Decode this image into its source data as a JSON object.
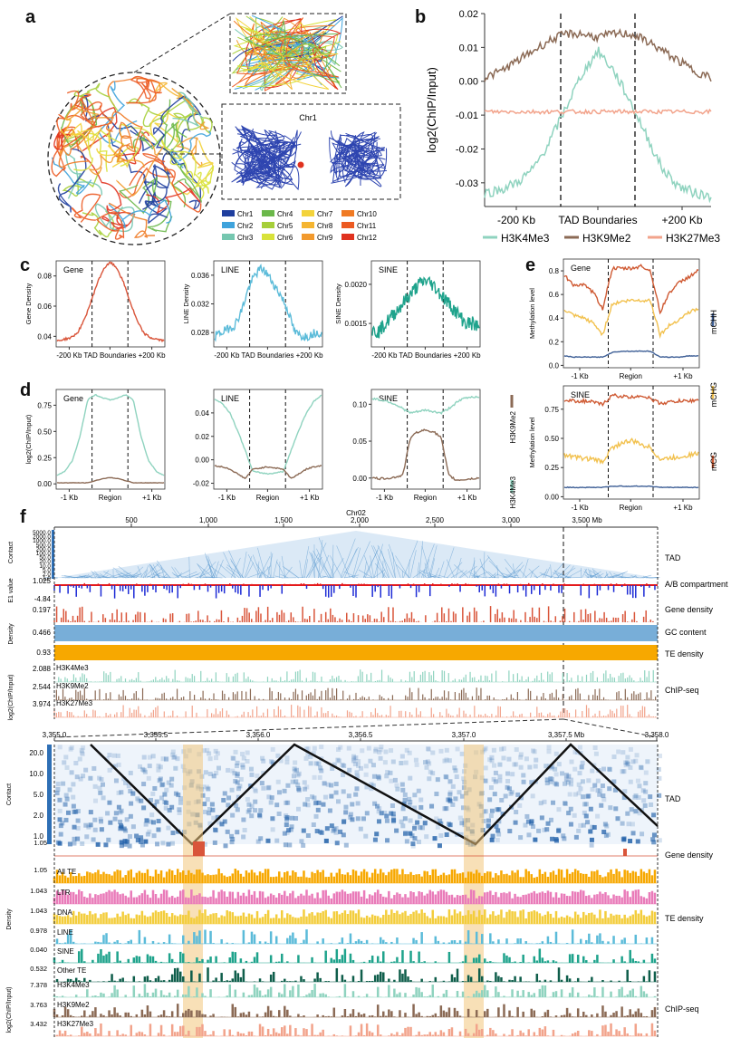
{
  "panels": {
    "a": "a",
    "b": "b",
    "c": "c",
    "d": "d",
    "e": "e",
    "f": "f"
  },
  "colors": {
    "h3k4me3": "#8fd3bf",
    "h3k9me2": "#8b6a55",
    "h3k27me3": "#f2a38b",
    "gene": "#d9553a",
    "line": "#5bbbd9",
    "sine": "#1fa38c",
    "mcg": "#cf5a33",
    "mchg": "#f2c14e",
    "mchh": "#3e5f96",
    "te": "#f7a800",
    "gc": "#78aed8",
    "ltr": "#e97bb9",
    "dna": "#f3cd3c",
    "other_te": "#0f5e4b"
  },
  "panel_a": {
    "inset_title": "Chr1",
    "legend": [
      {
        "name": "Chr1",
        "color": "#1f3e9e"
      },
      {
        "name": "Chr4",
        "color": "#6bb84a"
      },
      {
        "name": "Chr7",
        "color": "#f3d33b"
      },
      {
        "name": "Chr10",
        "color": "#f07a23"
      },
      {
        "name": "Chr2",
        "color": "#3fa3dc"
      },
      {
        "name": "Chr5",
        "color": "#a6cf3a"
      },
      {
        "name": "Chr8",
        "color": "#f5b531"
      },
      {
        "name": "Chr11",
        "color": "#ec5a22"
      },
      {
        "name": "Chr3",
        "color": "#76c7b0"
      },
      {
        "name": "Chr6",
        "color": "#d8e23a"
      },
      {
        "name": "Chr9",
        "color": "#f29a2e"
      },
      {
        "name": "Chr12",
        "color": "#e0321f"
      }
    ]
  },
  "chart_data": [
    {
      "panel": "b",
      "type": "line",
      "ylabel": "log2(ChIP/Input)",
      "yticks": [
        "0.02",
        "0.01",
        "0.00",
        "-0.01",
        "-0.02",
        "-0.03"
      ],
      "ylim": [
        -0.037,
        0.02
      ],
      "xticks": [
        "-200 Kb",
        "TAD Boundaries",
        "+200 Kb"
      ],
      "series": [
        {
          "name": "H3K4Me3",
          "values": [
            -0.033,
            -0.032,
            -0.03,
            -0.026,
            -0.018,
            -0.008,
            0.002,
            0.009,
            0.003,
            -0.006,
            -0.016,
            -0.026,
            -0.031,
            -0.033,
            -0.034
          ]
        },
        {
          "name": "H3K9Me2",
          "values": [
            0.001,
            0.003,
            0.006,
            0.009,
            0.012,
            0.014,
            0.014,
            0.013,
            0.014,
            0.014,
            0.012,
            0.009,
            0.006,
            0.003,
            0.001
          ]
        },
        {
          "name": "H3K27Me3",
          "values": [
            -0.009,
            -0.009,
            -0.009,
            -0.009,
            -0.009,
            -0.009,
            -0.009,
            -0.009,
            -0.009,
            -0.009,
            -0.009,
            -0.009,
            -0.009,
            -0.009,
            -0.009
          ]
        }
      ]
    },
    {
      "panel": "c1",
      "type": "line",
      "title": "Gene",
      "ylabel": "Gene Density",
      "yticks": [
        "0.08",
        "0.06",
        "0.04"
      ],
      "ylim": [
        0.033,
        0.09
      ],
      "xticks": [
        "-200 Kb",
        "TAD Boundaries",
        "+200 Kb"
      ],
      "series": [
        {
          "name": "Gene",
          "values": [
            0.037,
            0.038,
            0.039,
            0.042,
            0.05,
            0.062,
            0.075,
            0.085,
            0.089,
            0.085,
            0.075,
            0.062,
            0.05,
            0.042,
            0.039,
            0.038,
            0.037
          ]
        }
      ]
    },
    {
      "panel": "c2",
      "type": "line",
      "title": "LINE",
      "ylabel": "LINE Density",
      "yticks": [
        "0.036",
        "0.032",
        "0.028"
      ],
      "ylim": [
        0.026,
        0.038
      ],
      "xticks": [
        "-200 Kb",
        "TAD Boundaries",
        "+200 Kb"
      ],
      "series": [
        {
          "name": "LINE",
          "values": [
            0.0275,
            0.028,
            0.0285,
            0.029,
            0.031,
            0.034,
            0.036,
            0.037,
            0.036,
            0.0345,
            0.033,
            0.031,
            0.028,
            0.0275,
            0.0275,
            0.028,
            0.028
          ]
        }
      ]
    },
    {
      "panel": "c3",
      "type": "line",
      "title": "SINE",
      "ylabel": "SINE Density",
      "yticks": [
        "0.0020",
        "0.0015"
      ],
      "ylim": [
        0.0012,
        0.0023
      ],
      "xticks": [
        "-200 Kb",
        "TAD Boundaries",
        "+200 Kb"
      ],
      "series": [
        {
          "name": "SINE",
          "values": [
            0.0014,
            0.0014,
            0.0015,
            0.0016,
            0.0017,
            0.0018,
            0.0019,
            0.002,
            0.00205,
            0.002,
            0.0019,
            0.0018,
            0.0017,
            0.0016,
            0.0015,
            0.0015,
            0.00145
          ]
        }
      ]
    },
    {
      "panel": "d1",
      "type": "line",
      "title": "Gene",
      "ylabel": "log2(ChIP/Input)",
      "yticks": [
        "0.75",
        "0.50",
        "0.25",
        "0.00"
      ],
      "ylim": [
        -0.05,
        0.9
      ],
      "xticks": [
        "-1 Kb",
        "Region",
        "+1 Kb"
      ],
      "series": [
        {
          "name": "H3K4Me3",
          "values": [
            0.08,
            0.12,
            0.22,
            0.45,
            0.8,
            0.85,
            0.82,
            0.8,
            0.82,
            0.85,
            0.8,
            0.45,
            0.22,
            0.12,
            0.08
          ]
        },
        {
          "name": "H3K9Me2",
          "values": [
            0.01,
            0.01,
            0.01,
            0.01,
            0.01,
            0.03,
            0.05,
            0.06,
            0.05,
            0.03,
            0.01,
            0.01,
            0.01,
            0.01,
            0.01
          ]
        }
      ]
    },
    {
      "panel": "d2",
      "type": "line",
      "title": "LINE",
      "yticks": [
        "0.04",
        "0.02",
        "0.00",
        "-0.02"
      ],
      "ylim": [
        -0.025,
        0.06
      ],
      "xticks": [
        "-1 Kb",
        "Region",
        "+1 Kb"
      ],
      "series": [
        {
          "name": "H3K4Me3",
          "values": [
            0.052,
            0.048,
            0.04,
            0.025,
            0.008,
            -0.01,
            -0.011,
            -0.012,
            -0.011,
            -0.01,
            0.008,
            0.025,
            0.04,
            0.05,
            0.055
          ]
        },
        {
          "name": "H3K9Me2",
          "values": [
            -0.005,
            -0.006,
            -0.008,
            -0.012,
            -0.016,
            -0.008,
            -0.007,
            -0.006,
            -0.007,
            -0.008,
            -0.016,
            -0.012,
            -0.008,
            -0.006,
            -0.005
          ]
        }
      ]
    },
    {
      "panel": "d3",
      "type": "line",
      "title": "SINE",
      "yticks": [
        "0.10",
        "0.05",
        "0.00"
      ],
      "ylim": [
        -0.015,
        0.12
      ],
      "xticks": [
        "-1 Kb",
        "Region",
        "+1 Kb"
      ],
      "series": [
        {
          "name": "H3K4Me3",
          "values": [
            0.108,
            0.106,
            0.104,
            0.1,
            0.094,
            0.088,
            0.09,
            0.092,
            0.09,
            0.088,
            0.094,
            0.102,
            0.108,
            0.11,
            0.11
          ]
        },
        {
          "name": "H3K9Me2",
          "values": [
            0.0,
            -0.001,
            0.0,
            0.001,
            0.004,
            0.055,
            0.063,
            0.065,
            0.063,
            0.055,
            0.004,
            -0.003,
            -0.002,
            -0.001,
            0.0
          ]
        }
      ]
    },
    {
      "panel": "e1",
      "type": "line",
      "title": "Gene",
      "ylabel": "Methylation level",
      "yticks": [
        "0.8",
        "0.6",
        "0.4",
        "0.2",
        "0.0"
      ],
      "ylim": [
        -0.02,
        0.9
      ],
      "xticks": [
        "-1 Kb",
        "Region",
        "+1 Kb"
      ],
      "series": [
        {
          "name": "mCG",
          "values": [
            0.76,
            0.68,
            0.68,
            0.62,
            0.48,
            0.82,
            0.82,
            0.82,
            0.84,
            0.8,
            0.45,
            0.62,
            0.7,
            0.75,
            0.8
          ]
        },
        {
          "name": "mCHG",
          "values": [
            0.47,
            0.42,
            0.4,
            0.36,
            0.26,
            0.52,
            0.54,
            0.55,
            0.55,
            0.55,
            0.26,
            0.34,
            0.39,
            0.45,
            0.48
          ]
        },
        {
          "name": "mCHH",
          "values": [
            0.08,
            0.07,
            0.07,
            0.07,
            0.07,
            0.11,
            0.12,
            0.12,
            0.12,
            0.12,
            0.07,
            0.07,
            0.07,
            0.08,
            0.08
          ]
        }
      ]
    },
    {
      "panel": "e2",
      "type": "line",
      "title": "SINE",
      "ylabel": "Methylation level",
      "yticks": [
        "0.75",
        "0.50",
        "0.25",
        "0.00"
      ],
      "ylim": [
        -0.02,
        0.95
      ],
      "xticks": [
        "-1 Kb",
        "Region",
        "+1 Kb"
      ],
      "series": [
        {
          "name": "mCG",
          "values": [
            0.83,
            0.82,
            0.82,
            0.81,
            0.79,
            0.87,
            0.86,
            0.85,
            0.87,
            0.84,
            0.8,
            0.81,
            0.82,
            0.82,
            0.83
          ]
        },
        {
          "name": "mCHG",
          "values": [
            0.36,
            0.34,
            0.33,
            0.32,
            0.3,
            0.42,
            0.46,
            0.48,
            0.45,
            0.42,
            0.32,
            0.33,
            0.34,
            0.36,
            0.37
          ]
        },
        {
          "name": "mCHH",
          "values": [
            0.08,
            0.08,
            0.08,
            0.08,
            0.08,
            0.09,
            0.09,
            0.09,
            0.09,
            0.09,
            0.08,
            0.08,
            0.08,
            0.08,
            0.08
          ]
        }
      ]
    }
  ],
  "legend_b": [
    "H3K4Me3",
    "H3K9Me2",
    "H3K27Me3"
  ],
  "legend_d": [
    "H3K9Me2",
    "H3K4Me3"
  ],
  "legend_e": [
    "mCHH",
    "mCHG",
    "mCG"
  ],
  "panel_f": {
    "chrom": "Chr02",
    "top_ticks": [
      "500",
      "1,000",
      "1,500",
      "2,000",
      "2,500",
      "3,000",
      "3,500 Mb"
    ],
    "contact_ticks": [
      "5000.0",
      "2000.0",
      "1000.0",
      "500.0",
      "200.0",
      "100.0",
      "50.0",
      "20.0",
      "10.0",
      "5.0",
      "2.0",
      "1.0"
    ],
    "contact_label": "Contact",
    "e1_label": "E1 value",
    "e1_ticks": [
      "1.025",
      "-4.84"
    ],
    "density_label": "Density",
    "density_ticks": [
      "0.197",
      "0.466",
      "0.93"
    ],
    "chip_label": "log2(ChIP/Input)",
    "chip_ticks": [
      "2.088",
      "2.544",
      "3.974"
    ],
    "chip_tracks": [
      "H3K4Me3",
      "H3K9Me2",
      "H3K27Me3"
    ],
    "right_labels": [
      "TAD",
      "A/B compartment",
      "Gene density",
      "GC content",
      "TE density",
      "ChIP-seq"
    ],
    "zoom_ticks": [
      "3,355.0",
      "3,355.5",
      "3,356.0",
      "3,356.5",
      "3,357.0",
      "3,357.5 Mb",
      "3,358.0"
    ],
    "zoom_contact_ticks": [
      "20.0",
      "10.0",
      "5.0",
      "2.0",
      "1.0"
    ],
    "zoom_density_ticks": [
      "1.05",
      "1.05",
      "1.043",
      "1.043",
      "0.978",
      "0.040",
      "0.532"
    ],
    "zoom_chip_ticks": [
      "7.378",
      "3.763",
      "3.432"
    ],
    "zoom_tracks": [
      "All TE",
      "LTR",
      "DNA",
      "LINE",
      "SINE",
      "Other TE"
    ],
    "zoom_right_labels": [
      "TAD",
      "Gene density",
      "TE density",
      "ChIP-seq"
    ]
  }
}
